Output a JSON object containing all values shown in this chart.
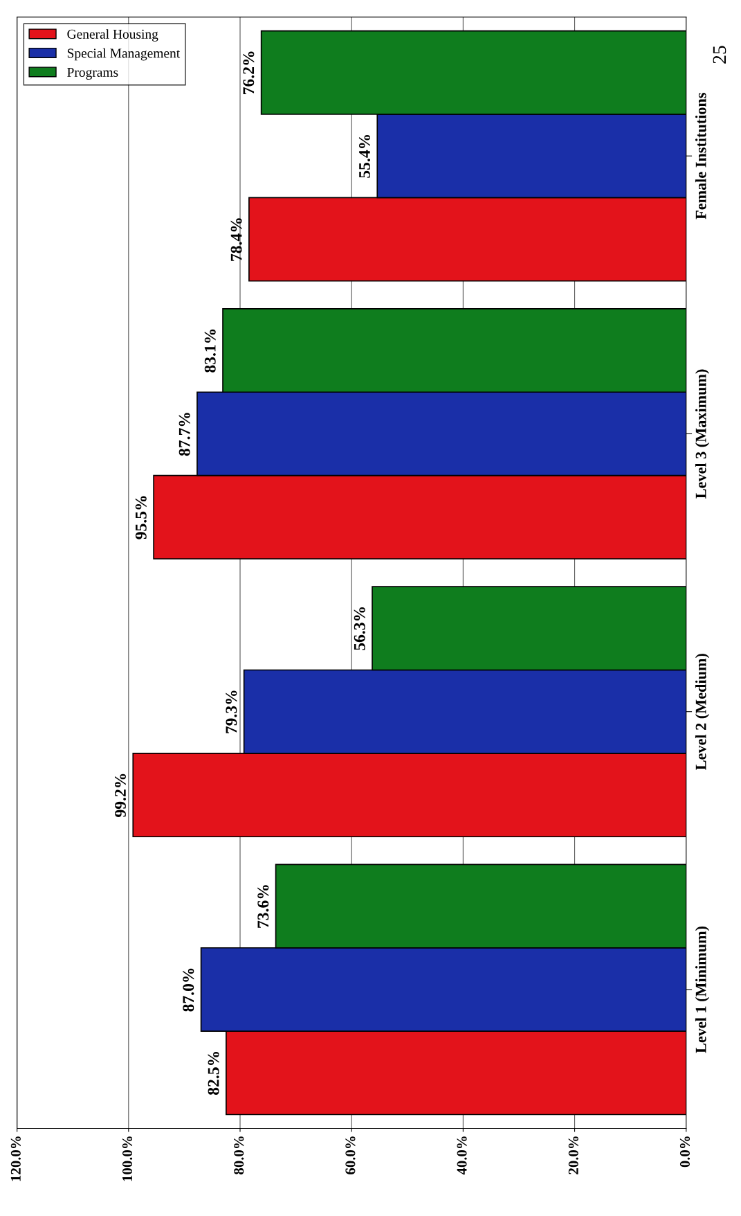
{
  "chart_data": {
    "type": "bar",
    "orientation": "horizontal",
    "categories": [
      "Female Institutions",
      "Level 3 (Maximum)",
      "Level 2 (Medium)",
      "Level 1 (Minimum)"
    ],
    "series": [
      {
        "name": "General Housing",
        "color": "#e3131b",
        "values": [
          78.4,
          95.5,
          99.2,
          82.5
        ],
        "value_labels": [
          "78.4%",
          "95.5%",
          "99.2%",
          "82.5%"
        ]
      },
      {
        "name": "Special Management",
        "color": "#1a2fa8",
        "values": [
          55.4,
          87.7,
          79.3,
          87.0
        ],
        "value_labels": [
          "55.4%",
          "87.7%",
          "79.3%",
          "87.0%"
        ]
      },
      {
        "name": "Programs",
        "color": "#0f7d1e",
        "values": [
          76.2,
          83.1,
          56.3,
          73.6
        ],
        "value_labels": [
          "76.2%",
          "83.1%",
          "56.3%",
          "73.6%"
        ]
      }
    ],
    "xlim": [
      120,
      0
    ],
    "xticks": [
      {
        "value": 0,
        "label": "0.0%"
      },
      {
        "value": 20,
        "label": "20.0%"
      },
      {
        "value": 40,
        "label": "40.0%"
      },
      {
        "value": 60,
        "label": "60.0%"
      },
      {
        "value": 80,
        "label": "80.0%"
      },
      {
        "value": 100,
        "label": "100.0%"
      },
      {
        "value": 120,
        "label": "120.0%"
      }
    ],
    "grid": "x",
    "legend": "top left",
    "annotations": [
      "25"
    ]
  }
}
